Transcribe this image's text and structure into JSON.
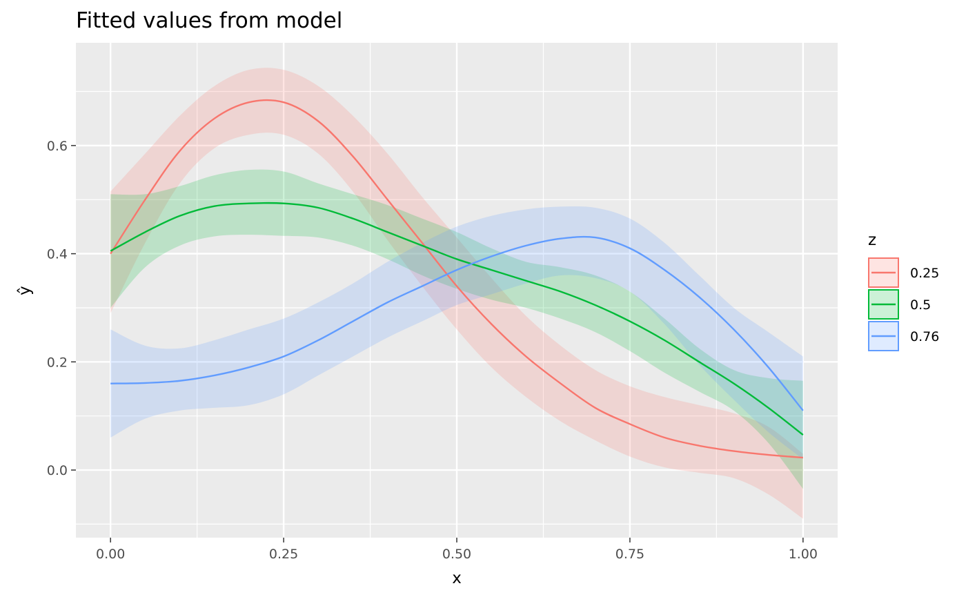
{
  "chart_data": {
    "type": "line",
    "title": "Fitted values from model",
    "xlabel": "x",
    "ylabel": "ŷ",
    "xlim": [
      -0.05,
      1.05
    ],
    "ylim": [
      -0.125,
      0.79
    ],
    "x_ticks": [
      0.0,
      0.25,
      0.5,
      0.75,
      1.0
    ],
    "x_tick_labels": [
      "0.00",
      "0.25",
      "0.50",
      "0.75",
      "1.00"
    ],
    "y_ticks": [
      0.0,
      0.2,
      0.4,
      0.6
    ],
    "y_tick_labels": [
      "0.0",
      "0.2",
      "0.4",
      "0.6"
    ],
    "grid": true,
    "legend": {
      "title": "z",
      "placement": "right"
    },
    "x": [
      0.0,
      0.05,
      0.1,
      0.15,
      0.2,
      0.25,
      0.3,
      0.35,
      0.4,
      0.45,
      0.5,
      0.55,
      0.6,
      0.65,
      0.7,
      0.75,
      0.8,
      0.85,
      0.9,
      0.95,
      1.0
    ],
    "series": [
      {
        "name": "0.25",
        "color": "#F8766D",
        "fill": "rgba(248,118,109,0.2)",
        "values": [
          0.4,
          0.5,
          0.59,
          0.65,
          0.68,
          0.68,
          0.645,
          0.58,
          0.5,
          0.42,
          0.34,
          0.27,
          0.21,
          0.16,
          0.115,
          0.085,
          0.06,
          0.045,
          0.035,
          0.028,
          0.023
        ],
        "upper": [
          0.515,
          0.585,
          0.655,
          0.71,
          0.74,
          0.74,
          0.71,
          0.655,
          0.585,
          0.505,
          0.43,
          0.355,
          0.285,
          0.23,
          0.185,
          0.155,
          0.135,
          0.12,
          0.105,
          0.08,
          0.03
        ],
        "lower": [
          0.29,
          0.42,
          0.53,
          0.595,
          0.62,
          0.62,
          0.585,
          0.515,
          0.425,
          0.34,
          0.26,
          0.19,
          0.135,
          0.09,
          0.055,
          0.025,
          0.005,
          -0.005,
          -0.015,
          -0.045,
          -0.09
        ]
      },
      {
        "name": "0.5",
        "color": "#00BA38",
        "fill": "rgba(0,186,56,0.2)",
        "values": [
          0.405,
          0.44,
          0.47,
          0.488,
          0.493,
          0.493,
          0.485,
          0.465,
          0.44,
          0.415,
          0.39,
          0.37,
          0.35,
          0.33,
          0.305,
          0.275,
          0.24,
          0.2,
          0.16,
          0.115,
          0.065
        ],
        "upper": [
          0.51,
          0.51,
          0.525,
          0.545,
          0.555,
          0.552,
          0.53,
          0.51,
          0.49,
          0.465,
          0.44,
          0.41,
          0.385,
          0.375,
          0.36,
          0.33,
          0.28,
          0.225,
          0.185,
          0.17,
          0.165
        ],
        "lower": [
          0.3,
          0.375,
          0.415,
          0.432,
          0.435,
          0.433,
          0.43,
          0.415,
          0.39,
          0.36,
          0.335,
          0.315,
          0.3,
          0.28,
          0.255,
          0.22,
          0.18,
          0.145,
          0.11,
          0.05,
          -0.035
        ]
      },
      {
        "name": "0.76",
        "color": "#619CFF",
        "fill": "rgba(97,156,255,0.2)",
        "values": [
          0.16,
          0.161,
          0.165,
          0.175,
          0.19,
          0.21,
          0.24,
          0.275,
          0.31,
          0.34,
          0.37,
          0.395,
          0.415,
          0.428,
          0.43,
          0.41,
          0.37,
          0.32,
          0.26,
          0.19,
          0.11
        ],
        "upper": [
          0.26,
          0.23,
          0.225,
          0.24,
          0.26,
          0.28,
          0.31,
          0.345,
          0.385,
          0.42,
          0.45,
          0.47,
          0.482,
          0.487,
          0.485,
          0.465,
          0.42,
          0.36,
          0.3,
          0.255,
          0.21
        ],
        "lower": [
          0.06,
          0.095,
          0.11,
          0.115,
          0.12,
          0.14,
          0.175,
          0.21,
          0.245,
          0.275,
          0.305,
          0.325,
          0.345,
          0.36,
          0.355,
          0.33,
          0.27,
          0.195,
          0.13,
          0.07,
          0.02
        ]
      }
    ]
  }
}
